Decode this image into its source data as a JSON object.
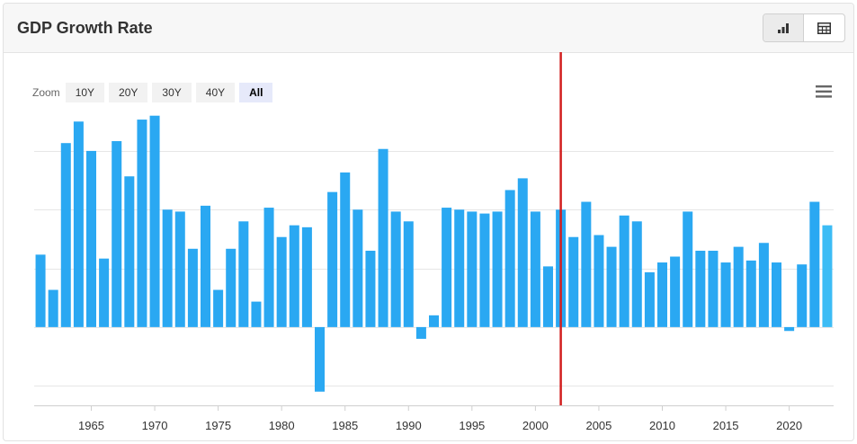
{
  "header": {
    "title": "GDP Growth Rate"
  },
  "view_toggle": [
    {
      "icon": "bar-chart-icon",
      "active": true
    },
    {
      "icon": "table-icon",
      "active": false
    }
  ],
  "zoom": {
    "label": "Zoom",
    "options": [
      "10Y",
      "20Y",
      "30Y",
      "40Y",
      "All"
    ],
    "selected": "All"
  },
  "menu_icon": "hamburger-menu-icon",
  "colors": {
    "bar": "#2aa8f2",
    "bar_last": "#3cbcf5",
    "marker": "#d21f1f",
    "grid": "#e6e6e6"
  },
  "chart_data": {
    "type": "bar",
    "x": [
      1961,
      1962,
      1963,
      1964,
      1965,
      1966,
      1967,
      1968,
      1969,
      1970,
      1971,
      1972,
      1973,
      1974,
      1975,
      1976,
      1977,
      1978,
      1979,
      1980,
      1981,
      1982,
      1983,
      1984,
      1985,
      1986,
      1987,
      1988,
      1989,
      1990,
      1991,
      1992,
      1993,
      1994,
      1995,
      1996,
      1997,
      1998,
      1999,
      2000,
      2001,
      2002,
      2003,
      2004,
      2005,
      2006,
      2007,
      2008,
      2009,
      2010,
      2011,
      2012,
      2013,
      2014,
      2015,
      2016,
      2017,
      2018,
      2019,
      2020,
      2021,
      2022,
      2023
    ],
    "values": [
      3.7,
      1.9,
      9.4,
      10.5,
      9.0,
      3.5,
      9.5,
      7.7,
      10.6,
      10.8,
      6.0,
      5.9,
      4.0,
      6.2,
      1.9,
      4.0,
      5.4,
      1.3,
      6.1,
      4.6,
      5.2,
      5.1,
      -3.3,
      6.9,
      7.9,
      6.0,
      3.9,
      9.1,
      5.9,
      5.4,
      -0.6,
      0.6,
      6.1,
      6.0,
      5.9,
      5.8,
      5.9,
      7.0,
      7.6,
      5.9,
      3.1,
      6.0,
      4.6,
      6.4,
      4.7,
      4.1,
      5.7,
      5.4,
      2.8,
      3.3,
      3.6,
      5.9,
      3.9,
      3.9,
      3.3,
      4.1,
      3.4,
      4.3,
      3.3,
      -0.2,
      3.2,
      6.4,
      5.2
    ],
    "xticks": [
      1965,
      1970,
      1975,
      1980,
      1985,
      1990,
      1995,
      2000,
      2005,
      2010,
      2015,
      2020
    ],
    "ylim": [
      -4.0,
      11.2
    ],
    "gridlines": [
      -3,
      0,
      3,
      6,
      9
    ],
    "marker_x": 2002,
    "legend": "none",
    "grid": true,
    "title": "GDP Growth Rate"
  }
}
